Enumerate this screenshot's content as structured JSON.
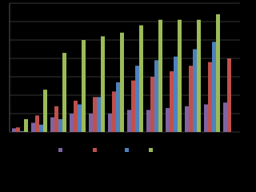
{
  "chart_data": {
    "type": "bar",
    "categories": [
      null,
      null,
      null,
      null,
      null,
      null,
      null,
      null,
      null,
      null,
      null,
      null
    ],
    "series": [
      {
        "color": "#8064a2",
        "values": [
          0.2,
          0.5,
          0.8,
          1.0,
          1.0,
          1.0,
          1.2,
          1.2,
          1.3,
          1.4,
          1.5,
          1.6
        ]
      },
      {
        "color": "#c0504d",
        "values": [
          0.25,
          0.9,
          1.4,
          1.7,
          1.9,
          2.2,
          2.8,
          3.0,
          3.3,
          3.6,
          3.8,
          4.0
        ]
      },
      {
        "color": "#4f81bd",
        "values": [
          0.05,
          0.4,
          0.7,
          1.5,
          1.9,
          2.7,
          3.6,
          3.9,
          4.1,
          4.5,
          4.9,
          null
        ]
      },
      {
        "color": "#9bbb59",
        "values": [
          0.7,
          2.3,
          4.3,
          5.0,
          5.2,
          5.4,
          5.8,
          6.1,
          6.1,
          6.1,
          6.4,
          null
        ]
      }
    ],
    "ylim": [
      0,
      7
    ],
    "yticks": [
      0,
      1,
      2,
      3,
      4,
      5,
      6,
      7
    ],
    "grid": true
  }
}
